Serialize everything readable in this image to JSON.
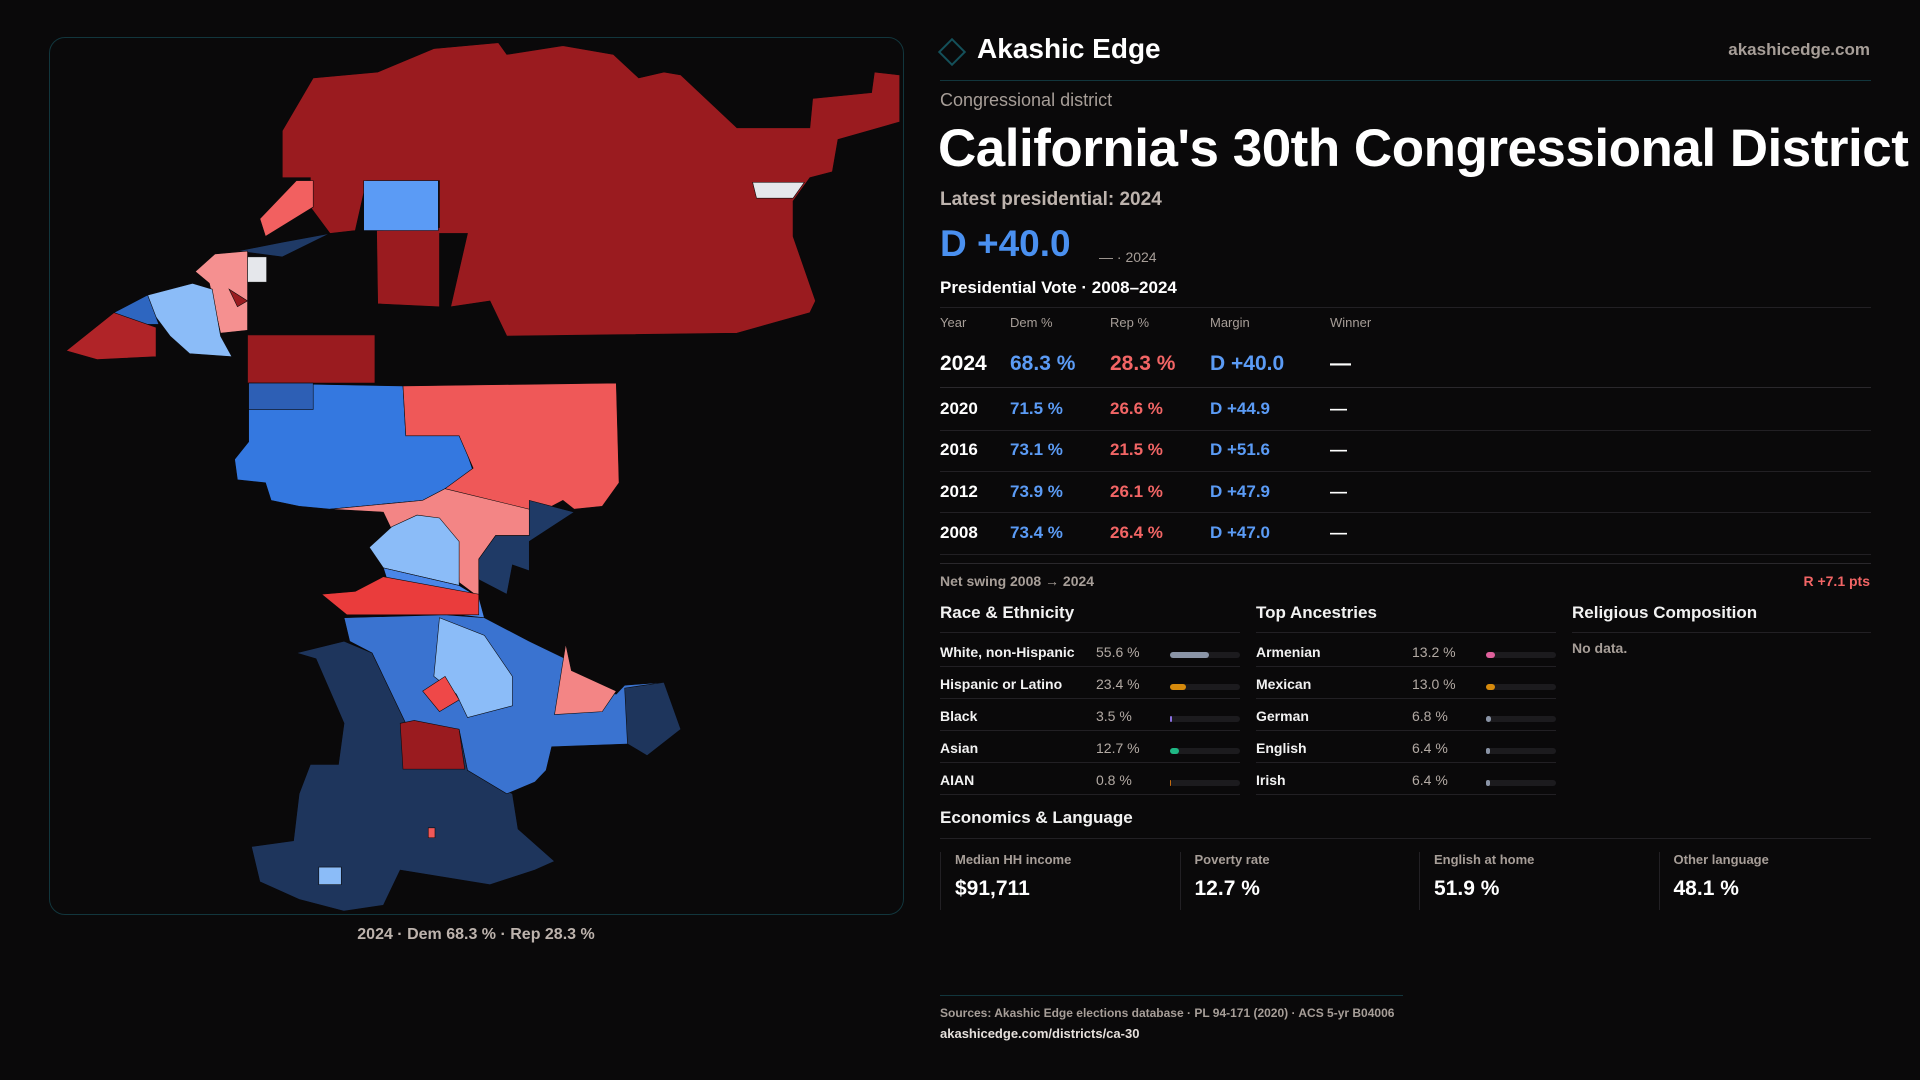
{
  "brand": {
    "name": "Akashic Edge",
    "site": "akashicedge.com",
    "logo_icon": "diamond-icon"
  },
  "header": {
    "kicker": "Congressional district",
    "title": "California's 30th Congressional District",
    "latest_label": "Latest presidential: 2024",
    "headline_margin": "D +40.0",
    "headline_sub": "— · 2024"
  },
  "presidential": {
    "title": "Presidential Vote · 2008–2024",
    "columns": [
      "Year",
      "Dem %",
      "Rep %",
      "Margin",
      "Winner"
    ],
    "rows": [
      {
        "year": "2024",
        "dem": "68.3 %",
        "rep": "28.3 %",
        "margin": "D +40.0",
        "winner": "—"
      },
      {
        "year": "2020",
        "dem": "71.5 %",
        "rep": "26.6 %",
        "margin": "D +44.9",
        "winner": "—"
      },
      {
        "year": "2016",
        "dem": "73.1 %",
        "rep": "21.5 %",
        "margin": "D +51.6",
        "winner": "—"
      },
      {
        "year": "2012",
        "dem": "73.9 %",
        "rep": "26.1 %",
        "margin": "D +47.9",
        "winner": "—"
      },
      {
        "year": "2008",
        "dem": "73.4 %",
        "rep": "26.4 %",
        "margin": "D +47.0",
        "winner": "—"
      }
    ],
    "swing_label": "Net swing 2008 → 2024",
    "swing_value": "R +7.1 pts"
  },
  "race": {
    "title": "Race & Ethnicity",
    "items": [
      {
        "label": "White, non-Hispanic",
        "value": "55.6 %",
        "pct": 55.6,
        "color": "#8a94a6"
      },
      {
        "label": "Hispanic or Latino",
        "value": "23.4 %",
        "pct": 23.4,
        "color": "#d68a0c"
      },
      {
        "label": "Black",
        "value": "3.5 %",
        "pct": 3.5,
        "color": "#8b6fe0"
      },
      {
        "label": "Asian",
        "value": "12.7 %",
        "pct": 12.7,
        "color": "#1fb784"
      },
      {
        "label": "AIAN",
        "value": "0.8 %",
        "pct": 0.8,
        "color": "#c26a10"
      }
    ]
  },
  "ancestry": {
    "title": "Top Ancestries",
    "items": [
      {
        "label": "Armenian",
        "value": "13.2 %",
        "pct": 13.2,
        "color": "#e0609c"
      },
      {
        "label": "Mexican",
        "value": "13.0 %",
        "pct": 13.0,
        "color": "#d68a0c"
      },
      {
        "label": "German",
        "value": "6.8 %",
        "pct": 6.8,
        "color": "#8a94a6"
      },
      {
        "label": "English",
        "value": "6.4 %",
        "pct": 6.4,
        "color": "#8a94a6"
      },
      {
        "label": "Irish",
        "value": "6.4 %",
        "pct": 6.4,
        "color": "#8a94a6"
      }
    ]
  },
  "religion": {
    "title": "Religious Composition",
    "empty": "No data."
  },
  "economics": {
    "title": "Economics & Language",
    "cells": [
      {
        "label": "Median HH income",
        "value": "$91,711"
      },
      {
        "label": "Poverty rate",
        "value": "12.7 %"
      },
      {
        "label": "English at home",
        "value": "51.9 %"
      },
      {
        "label": "Other language",
        "value": "48.1 %"
      }
    ]
  },
  "map": {
    "caption": "2024 · Dem 68.3 % · Rep 28.3 %",
    "colors": {
      "dem_strong": "#1e355c",
      "dem": "#3478e0",
      "dem_lean": "#8bbcf8",
      "rep_lean": "#f38585",
      "rep": "#ef5858",
      "rep_strong": "#9a1b1f",
      "none": "#e5e7eb"
    }
  },
  "footer": {
    "sources": "Sources: Akashic Edge elections database · PL 94-171 (2020) · ACS 5-yr B04006",
    "url": "akashicedge.com/districts/ca-30"
  }
}
